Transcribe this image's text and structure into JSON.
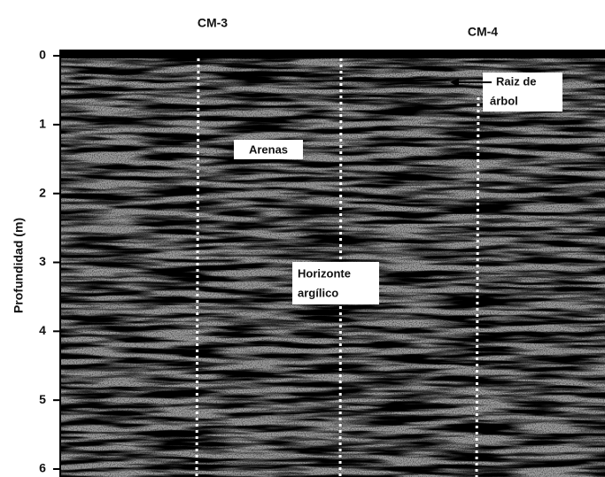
{
  "profiles": [
    "CM-3",
    "CM-4"
  ],
  "depth_axis": {
    "label": "Profundidad (m)",
    "lim": [
      0,
      6
    ],
    "ticks": [
      0,
      1,
      2,
      3,
      4,
      5,
      6
    ]
  },
  "annotations": {
    "sands": "Arenas",
    "horizon": [
      "Horizonte",
      "argílico"
    ],
    "root": [
      "Raiz de",
      "árbol"
    ]
  }
}
